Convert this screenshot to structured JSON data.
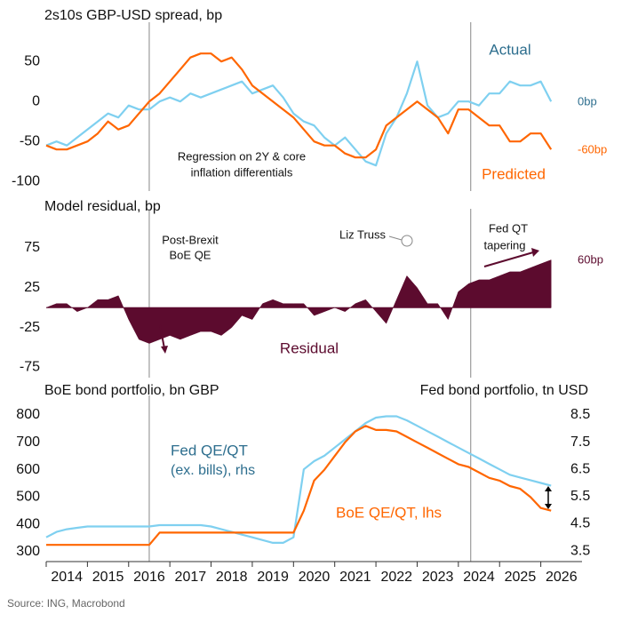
{
  "chart_data": [
    {
      "type": "line",
      "title": "2s10s GBP-USD spread, bp",
      "x": [
        2014,
        2014.25,
        2014.5,
        2014.75,
        2015,
        2015.25,
        2015.5,
        2015.75,
        2016,
        2016.25,
        2016.5,
        2016.75,
        2017,
        2017.25,
        2017.5,
        2017.75,
        2018,
        2018.25,
        2018.5,
        2018.75,
        2019,
        2019.25,
        2019.5,
        2019.75,
        2020,
        2020.25,
        2020.5,
        2020.75,
        2021,
        2021.25,
        2021.5,
        2021.75,
        2022,
        2022.25,
        2022.5,
        2022.75,
        2023,
        2023.25,
        2023.5,
        2023.75,
        2024,
        2024.25,
        2024.5,
        2024.75,
        2025,
        2025.25,
        2025.5,
        2025.75,
        2026,
        2026.25
      ],
      "series": [
        {
          "name": "Actual",
          "color": "#7fd0f0",
          "values": [
            -55,
            -50,
            -55,
            -45,
            -35,
            -25,
            -15,
            -20,
            -5,
            -10,
            -10,
            0,
            5,
            0,
            10,
            5,
            10,
            15,
            20,
            25,
            10,
            15,
            20,
            5,
            -15,
            -25,
            -30,
            -45,
            -55,
            -45,
            -60,
            -75,
            -80,
            -40,
            -20,
            10,
            50,
            -5,
            -20,
            -15,
            0,
            0,
            -5,
            10,
            10,
            25,
            20,
            20,
            25,
            0
          ]
        },
        {
          "name": "Predicted",
          "color": "#ff6600",
          "values": [
            -55,
            -60,
            -60,
            -55,
            -50,
            -40,
            -25,
            -35,
            -30,
            -15,
            0,
            10,
            25,
            40,
            55,
            60,
            60,
            50,
            55,
            40,
            20,
            10,
            0,
            -10,
            -20,
            -35,
            -50,
            -55,
            -55,
            -65,
            -70,
            -70,
            -60,
            -30,
            -20,
            -10,
            0,
            -10,
            -20,
            -40,
            -10,
            -10,
            -20,
            -30,
            -30,
            -50,
            -50,
            -40,
            -40,
            -60
          ]
        }
      ],
      "annotations": [
        "Regression on 2Y & core",
        "inflation differentials",
        "0bp",
        "-60bp"
      ],
      "vlines": [
        2016.5,
        2024.3
      ],
      "xlim": [
        2014,
        2027
      ],
      "ylim": [
        -112,
        88
      ],
      "yticks": [
        50,
        0,
        -50,
        -100
      ]
    },
    {
      "type": "area",
      "title": "Model residual, bp",
      "x": [
        2014,
        2014.25,
        2014.5,
        2014.75,
        2015,
        2015.25,
        2015.5,
        2015.75,
        2016,
        2016.25,
        2016.5,
        2016.75,
        2017,
        2017.25,
        2017.5,
        2017.75,
        2018,
        2018.25,
        2018.5,
        2018.75,
        2019,
        2019.25,
        2019.5,
        2019.75,
        2020,
        2020.25,
        2020.5,
        2020.75,
        2021,
        2021.25,
        2021.5,
        2021.75,
        2022,
        2022.25,
        2022.5,
        2022.75,
        2023,
        2023.25,
        2023.5,
        2023.75,
        2024,
        2024.25,
        2024.5,
        2024.75,
        2025,
        2025.25,
        2025.5,
        2025.75,
        2026,
        2026.25
      ],
      "series": [
        {
          "name": "Residual",
          "color": "#5c0b2e",
          "values": [
            0,
            5,
            5,
            -5,
            0,
            10,
            10,
            15,
            -15,
            -40,
            -45,
            -40,
            -35,
            -40,
            -35,
            -30,
            -30,
            -35,
            -25,
            -10,
            -15,
            5,
            10,
            5,
            5,
            5,
            -10,
            -5,
            0,
            -5,
            5,
            10,
            -5,
            -20,
            10,
            40,
            25,
            5,
            5,
            -15,
            20,
            30,
            35,
            35,
            40,
            45,
            45,
            50,
            55,
            60
          ]
        }
      ],
      "annotations": [
        "Post-Brexit",
        "BoE QE",
        "Liz Truss",
        "Fed  QT",
        "tapering",
        "60bp"
      ],
      "vlines": [
        2016.5,
        2024.3
      ],
      "xlim": [
        2014,
        2027
      ],
      "ylim": [
        -88,
        113
      ],
      "yticks": [
        75,
        25,
        -25,
        -75
      ]
    },
    {
      "type": "line",
      "title": "BoE bond portfolio, bn GBP",
      "y2_title": "Fed bond portfolio, tn USD",
      "x": [
        2014,
        2014.25,
        2014.5,
        2014.75,
        2015,
        2015.25,
        2015.5,
        2015.75,
        2016,
        2016.25,
        2016.5,
        2016.75,
        2017,
        2017.25,
        2017.5,
        2017.75,
        2018,
        2018.25,
        2018.5,
        2018.75,
        2019,
        2019.25,
        2019.5,
        2019.75,
        2020,
        2020.25,
        2020.5,
        2020.75,
        2021,
        2021.25,
        2021.5,
        2021.75,
        2022,
        2022.25,
        2022.5,
        2022.75,
        2023,
        2023.25,
        2023.5,
        2023.75,
        2024,
        2024.25,
        2024.5,
        2024.75,
        2025,
        2025.25,
        2025.5,
        2025.75,
        2026,
        2026.25
      ],
      "series": [
        {
          "name": "Fed QE/QT",
          "color": "#7fd0f0",
          "axis": "y2",
          "values": [
            4.0,
            4.2,
            4.3,
            4.35,
            4.4,
            4.4,
            4.4,
            4.4,
            4.4,
            4.4,
            4.4,
            4.45,
            4.45,
            4.45,
            4.45,
            4.45,
            4.4,
            4.3,
            4.2,
            4.1,
            4.0,
            3.9,
            3.8,
            3.8,
            4.0,
            6.5,
            6.8,
            7.0,
            7.3,
            7.6,
            7.9,
            8.2,
            8.4,
            8.45,
            8.45,
            8.3,
            8.1,
            7.9,
            7.7,
            7.5,
            7.3,
            7.1,
            6.9,
            6.7,
            6.5,
            6.3,
            6.2,
            6.1,
            6.0,
            5.9
          ]
        },
        {
          "name": "BoE QE/QT, lhs",
          "color": "#ff6600",
          "values": [
            325,
            325,
            325,
            325,
            325,
            325,
            325,
            325,
            325,
            325,
            325,
            370,
            370,
            370,
            370,
            370,
            370,
            370,
            370,
            370,
            370,
            370,
            370,
            370,
            370,
            450,
            560,
            600,
            650,
            700,
            740,
            760,
            745,
            745,
            740,
            720,
            700,
            680,
            660,
            640,
            620,
            610,
            590,
            570,
            560,
            540,
            530,
            500,
            460,
            450
          ]
        }
      ],
      "annotations": [
        "(ex. bills), rhs"
      ],
      "vlines": [
        2016.5,
        2024.3
      ],
      "xlim": [
        2014,
        2027
      ],
      "ylim": [
        264,
        839
      ],
      "yticks": [
        800,
        700,
        600,
        500,
        400,
        300
      ],
      "y2lim": [
        3.11,
        8.89
      ],
      "y2ticks": [
        8.5,
        7.5,
        6.5,
        5.5,
        4.5,
        3.5
      ],
      "xticks": [
        2014,
        2015,
        2016,
        2017,
        2018,
        2019,
        2020,
        2021,
        2022,
        2023,
        2024,
        2025,
        2026
      ]
    }
  ],
  "source": "Source: ING, Macrobond"
}
